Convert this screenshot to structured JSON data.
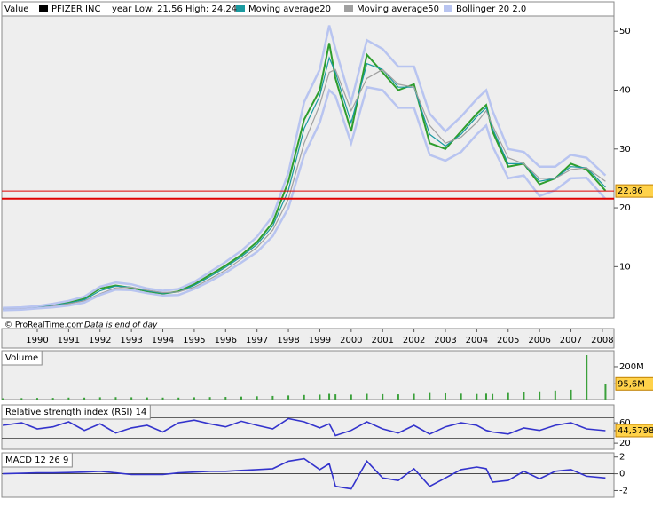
{
  "chart_data": [
    {
      "type": "line",
      "axis_label": "Value",
      "range_label": "year Low: 21,56 High: 24,24",
      "footer": "© ProRealTime.com",
      "footer_note": "Data is end of day",
      "x": [
        1988.9,
        1989.5,
        1990,
        1990.5,
        1991,
        1991.5,
        1992,
        1992.5,
        1993,
        1993.5,
        1994,
        1994.5,
        1995,
        1995.5,
        1996,
        1996.5,
        1997,
        1997.5,
        1998,
        1998.5,
        1999,
        1999.3,
        1999.5,
        2000,
        2000.5,
        2001,
        2001.5,
        2002,
        2002.5,
        2003,
        2003.5,
        2004,
        2004.3,
        2004.5,
        2005,
        2005.5,
        2006,
        2006.5,
        2007,
        2007.5,
        2008.1
      ],
      "series": [
        {
          "name": "PFIZER INC",
          "color": "#000000",
          "line_color": "#2e9e2e",
          "values": [
            2.8,
            3.0,
            3.2,
            3.5,
            4.0,
            4.6,
            6.3,
            6.8,
            6.4,
            5.8,
            5.4,
            5.8,
            7.0,
            8.6,
            10.2,
            12.0,
            14.2,
            17.5,
            24.5,
            35.0,
            40.0,
            48.0,
            42.0,
            33.0,
            46.0,
            43.0,
            40.0,
            41.0,
            31.0,
            30.0,
            33.0,
            36.0,
            37.5,
            33.0,
            27.0,
            27.5,
            24.0,
            25.0,
            27.5,
            26.5,
            22.9
          ]
        },
        {
          "name": "Moving average20",
          "color": "#1a9aa0",
          "values": [
            2.8,
            2.9,
            3.1,
            3.4,
            3.8,
            4.4,
            5.9,
            6.7,
            6.5,
            5.9,
            5.5,
            5.7,
            6.8,
            8.3,
            9.9,
            11.7,
            13.8,
            16.9,
            23.0,
            33.5,
            39.0,
            45.5,
            43.0,
            34.5,
            44.5,
            43.5,
            40.5,
            40.5,
            32.5,
            30.5,
            32.5,
            35.5,
            37.0,
            33.5,
            27.5,
            27.5,
            24.5,
            25.0,
            27.0,
            26.8,
            23.5
          ]
        },
        {
          "name": "Moving average50",
          "color": "#a0a0a0",
          "values": [
            2.8,
            2.9,
            3.0,
            3.3,
            3.7,
            4.2,
            5.4,
            6.4,
            6.5,
            6.0,
            5.6,
            5.7,
            6.5,
            7.9,
            9.4,
            11.3,
            13.3,
            16.2,
            21.5,
            31.0,
            37.5,
            43.0,
            43.5,
            36.5,
            42.0,
            43.5,
            41.0,
            40.5,
            34.0,
            31.0,
            32.0,
            34.5,
            36.5,
            34.0,
            28.5,
            27.5,
            25.0,
            25.0,
            26.5,
            26.8,
            24.5
          ]
        },
        {
          "name": "Bollinger 20 2.0",
          "color": "#b8c4f0",
          "upper": [
            3.0,
            3.1,
            3.3,
            3.7,
            4.2,
            4.9,
            6.6,
            7.3,
            7.0,
            6.3,
            5.9,
            6.2,
            7.4,
            9.1,
            10.8,
            12.7,
            15.1,
            18.6,
            26.0,
            38.0,
            43.5,
            51.0,
            47.0,
            38.0,
            48.5,
            47.0,
            44.0,
            44.0,
            36.0,
            33.0,
            35.5,
            38.5,
            40.0,
            36.5,
            30.0,
            29.5,
            27.0,
            27.0,
            29.0,
            28.5,
            25.5
          ],
          "lower": [
            2.6,
            2.7,
            2.9,
            3.1,
            3.4,
            3.9,
            5.2,
            6.1,
            6.0,
            5.5,
            5.1,
            5.2,
            6.2,
            7.5,
            9.0,
            10.7,
            12.5,
            15.2,
            20.0,
            29.0,
            34.5,
            40.0,
            39.0,
            31.0,
            40.5,
            40.0,
            37.0,
            37.0,
            29.0,
            28.0,
            29.5,
            32.5,
            34.0,
            30.5,
            25.0,
            25.5,
            22.0,
            23.0,
            25.0,
            25.1,
            21.5
          ]
        }
      ],
      "year_low": 21.56,
      "last": {
        "value": 22.86,
        "label": "22,86"
      },
      "xlim": [
        1988.87,
        2008.37
      ],
      "xticks": [
        1990,
        1991,
        1992,
        1993,
        1994,
        1995,
        1996,
        1997,
        1998,
        1999,
        2000,
        2001,
        2002,
        2003,
        2004,
        2005,
        2006,
        2007,
        2008
      ],
      "ylim": [
        1.3,
        52.6
      ],
      "yticks": [
        10,
        20,
        30,
        40,
        50
      ]
    },
    {
      "type": "bar",
      "title": "Volume",
      "color": "#3aa03a",
      "values": [
        8,
        9,
        10,
        10,
        12,
        12,
        14,
        15,
        14,
        13,
        12,
        12,
        14,
        15,
        16,
        18,
        20,
        22,
        25,
        28,
        30,
        35,
        32,
        30,
        35,
        33,
        32,
        35,
        40,
        38,
        36,
        34,
        36,
        34,
        40,
        45,
        50,
        55,
        60,
        270,
        95
      ],
      "last": {
        "value": 95.6,
        "label": "95,6M"
      },
      "ylim": [
        0,
        297
      ],
      "yticks": [
        {
          "value": 200,
          "label": "200M"
        }
      ]
    },
    {
      "type": "line",
      "title": "Relative strength index (RSI) 14",
      "color": "#3333cc",
      "values": [
        55,
        60,
        48,
        52,
        62,
        45,
        58,
        40,
        50,
        55,
        42,
        60,
        65,
        58,
        52,
        63,
        55,
        48,
        68,
        62,
        50,
        58,
        35,
        45,
        62,
        48,
        40,
        55,
        38,
        52,
        60,
        55,
        45,
        42,
        38,
        50,
        45,
        55,
        60,
        48,
        44.6
      ],
      "last": {
        "value": 44.5798,
        "label": "44,5798"
      },
      "ref_lines": [
        30,
        70
      ],
      "ylim": [
        8,
        95
      ],
      "yticks": [
        20,
        60
      ]
    },
    {
      "type": "line",
      "title": "MACD 12 26 9",
      "color": "#3333cc",
      "values": [
        0,
        0.05,
        0.1,
        0.1,
        0.15,
        0.2,
        0.3,
        0.1,
        -0.1,
        -0.1,
        -0.1,
        0.1,
        0.2,
        0.3,
        0.3,
        0.4,
        0.5,
        0.6,
        1.5,
        1.8,
        0.5,
        1.2,
        -1.5,
        -1.8,
        1.5,
        -0.5,
        -0.8,
        0.6,
        -1.5,
        -0.5,
        0.5,
        0.8,
        0.6,
        -1.0,
        -0.8,
        0.3,
        -0.6,
        0.3,
        0.5,
        -0.3,
        -0.5
      ],
      "ref_lines": [
        0
      ],
      "ylim": [
        -2.8,
        2.5
      ],
      "yticks": [
        -2,
        0,
        2
      ]
    }
  ]
}
